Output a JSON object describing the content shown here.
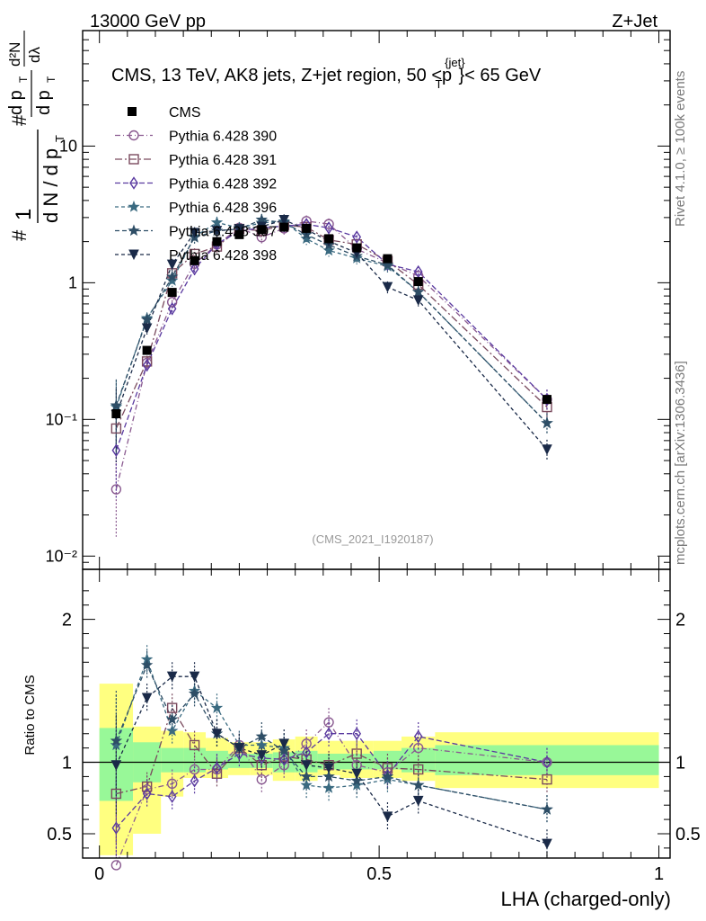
{
  "header": {
    "left": "13000 GeV pp",
    "right": "Z+Jet"
  },
  "side_labels": {
    "rivet": "Rivet 4.1.0, ≥ 100k events",
    "mcplots": "mcplots.cern.ch [arXiv:1306.3436]"
  },
  "chart_data": {
    "type": "scatter",
    "title": "CMS, 13 TeV, AK8 jets, Z+jet region, 50 <",
    "title_p": "p",
    "title_p_sup": "{jet}",
    "title_p_sub": "T",
    "title_end": "}< 65 GeV",
    "watermark": "(CMS_2021_I1920187)",
    "xlabel": "LHA (charged-only)",
    "ylabel": "d N / d p",
    "ylabel_sub": "T",
    "ylabel_parts": {
      "hash1": "#",
      "one": "1",
      "hash2": "#",
      "frac2_top": "d p",
      "frac2_top_sub": "T",
      "frac2_bot": "d p",
      "frac2_bot_sub": "T",
      "dlambda": "dλ",
      "d2n": "d²N"
    },
    "ratio_ylabel": "Ratio to CMS",
    "xlim": [
      -0.03,
      1.02
    ],
    "ylim": [
      0.008,
      70
    ],
    "ratio_ylim": [
      0.33,
      2.35
    ],
    "x_ticks": [
      "0",
      "0.5",
      "1"
    ],
    "y_ticks": [
      "10⁻²",
      "10⁻¹",
      "1",
      "10"
    ],
    "ratio_ticks": [
      "0.5",
      "1",
      "2"
    ],
    "x": [
      0.03,
      0.085,
      0.13,
      0.17,
      0.21,
      0.25,
      0.29,
      0.33,
      0.37,
      0.41,
      0.46,
      0.515,
      0.57,
      0.8
    ],
    "data_values": [
      0.11,
      0.32,
      0.85,
      1.45,
      2.0,
      2.25,
      2.45,
      2.55,
      2.5,
      2.1,
      1.8,
      1.5,
      1.02,
      0.14
    ],
    "data_label": "CMS",
    "band_edges": [
      0,
      0.06,
      0.11,
      0.15,
      0.19,
      0.23,
      0.27,
      0.31,
      0.35,
      0.39,
      0.43,
      0.49,
      0.54,
      0.6,
      1.0
    ],
    "band_inner_lo": [
      0.73,
      0.86,
      0.93,
      0.93,
      0.95,
      0.96,
      0.96,
      0.93,
      0.93,
      0.95,
      0.95,
      0.95,
      0.93,
      0.91
    ],
    "band_inner_hi": [
      1.24,
      1.14,
      1.1,
      1.1,
      1.08,
      1.06,
      1.06,
      1.07,
      1.08,
      1.06,
      1.06,
      1.08,
      1.1,
      1.12
    ],
    "band_outer_lo": [
      0.35,
      0.5,
      0.76,
      0.89,
      0.89,
      0.91,
      0.91,
      0.87,
      0.87,
      0.91,
      0.89,
      0.89,
      0.87,
      0.82
    ],
    "band_outer_hi": [
      1.55,
      1.25,
      1.22,
      1.21,
      1.17,
      1.14,
      1.14,
      1.16,
      1.18,
      1.15,
      1.15,
      1.15,
      1.18,
      1.21
    ],
    "series": [
      {
        "name": "Pythia 6.428 390",
        "color": "#8a5a90",
        "marker": "circle",
        "dash": "6,3,1,3",
        "ratio": [
          0.28,
          0.81,
          0.85,
          0.95,
          0.95,
          1.12,
          0.88,
          0.98,
          1.13,
          1.28,
          0.98,
          0.93,
          1.1,
          1.0
        ]
      },
      {
        "name": "Pythia 6.428 391",
        "color": "#7a4a5e",
        "marker": "square",
        "dash": "8,3,2,3",
        "ratio": [
          0.78,
          0.83,
          1.38,
          1.12,
          0.92,
          1.1,
          0.98,
          1.04,
          1.02,
          0.98,
          1.06,
          0.96,
          0.95,
          0.88
        ]
      },
      {
        "name": "Pythia 6.428 392",
        "color": "#5a3aa0",
        "marker": "diamond",
        "dash": "6,3",
        "ratio": [
          0.54,
          0.78,
          0.76,
          0.87,
          0.96,
          1.06,
          1.03,
          1.02,
          1.07,
          1.2,
          1.2,
          0.91,
          1.18,
          1.0
        ]
      },
      {
        "name": "Pythia 6.428 396",
        "color": "#3a6a80",
        "marker": "star",
        "dash": "4,3",
        "ratio": [
          1.12,
          1.72,
          1.22,
          1.5,
          1.38,
          1.12,
          1.12,
          1.1,
          0.84,
          0.82,
          0.84,
          0.88,
          0.84,
          0.67
        ]
      },
      {
        "name": "Pythia 6.428 397",
        "color": "#2e4e66",
        "marker": "star",
        "dash": "5,3",
        "ratio": [
          1.15,
          1.68,
          1.3,
          1.48,
          1.2,
          1.1,
          1.18,
          1.08,
          0.9,
          0.9,
          0.87,
          0.9,
          0.84,
          0.67
        ]
      },
      {
        "name": "Pythia 6.428 398",
        "color": "#1a2a48",
        "marker": "triangle",
        "dash": "4,3",
        "ratio": [
          0.98,
          1.45,
          1.6,
          1.6,
          1.2,
          1.1,
          1.05,
          1.13,
          0.98,
          0.96,
          0.92,
          0.62,
          0.73,
          0.43
        ]
      }
    ]
  }
}
